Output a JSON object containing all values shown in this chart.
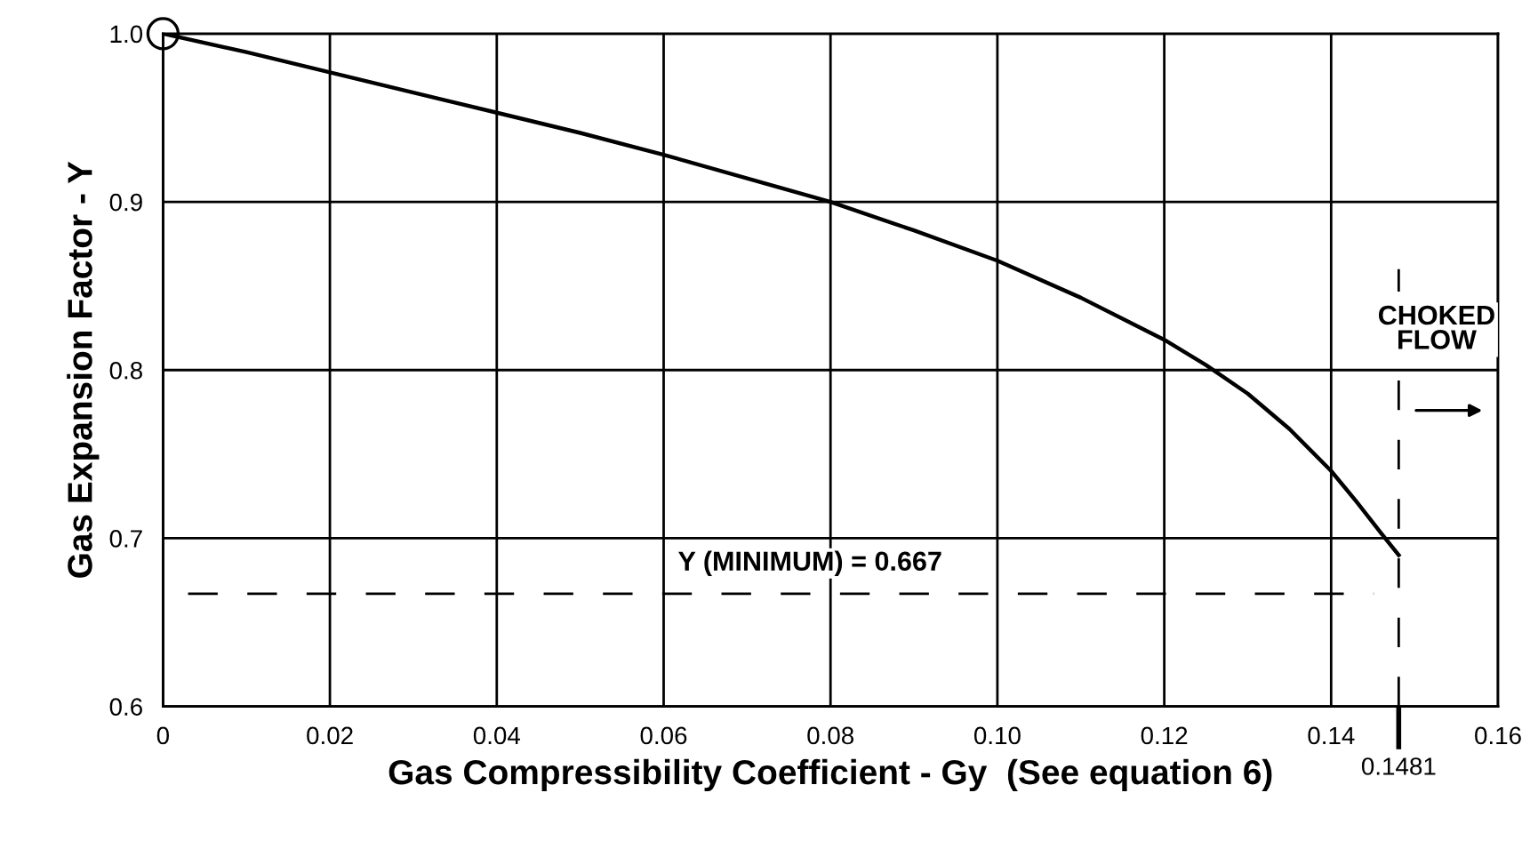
{
  "chart_data": {
    "type": "line",
    "xlabel": "Gas Compressibility Coefficient - Gy  (See equation 6)",
    "ylabel": "Gas Expansion Factor - Y",
    "x": [
      0,
      0.01,
      0.02,
      0.03,
      0.04,
      0.05,
      0.06,
      0.07,
      0.08,
      0.09,
      0.1,
      0.11,
      0.12,
      0.125,
      0.13,
      0.135,
      0.14,
      0.143,
      0.146,
      0.1481
    ],
    "series": [
      {
        "color": "#000000",
        "values": [
          1.0,
          0.989,
          0.977,
          0.965,
          0.953,
          0.941,
          0.928,
          0.914,
          0.9,
          0.883,
          0.865,
          0.843,
          0.818,
          0.803,
          0.786,
          0.765,
          0.74,
          0.722,
          0.703,
          0.69
        ]
      },
      {
        "type": "scatter",
        "marker": "circle",
        "color": "#000000",
        "x": [
          0
        ],
        "values": [
          1.0
        ]
      }
    ],
    "xlim": [
      0,
      0.16
    ],
    "ylim": [
      0.6,
      1.0
    ],
    "xticks": [
      0,
      {
        "value": 0.02,
        "label": "0.02"
      },
      {
        "value": 0.04,
        "label": "0.04"
      },
      {
        "value": 0.06,
        "label": "0.06"
      },
      {
        "value": 0.08,
        "label": "0.08"
      },
      {
        "value": 0.1,
        "label": "0.10"
      },
      {
        "value": 0.12,
        "label": "0.12"
      },
      {
        "value": 0.14,
        "label": "0.14"
      },
      {
        "value": 0.16,
        "label": "0.16"
      }
    ],
    "yticks": [
      {
        "value": 0.6,
        "label": "0.6"
      },
      {
        "value": 0.7,
        "label": "0.7"
      },
      {
        "value": 0.8,
        "label": "0.8"
      },
      {
        "value": 0.9,
        "label": "0.9"
      },
      {
        "value": 1.0,
        "label": "1.0"
      }
    ],
    "grid": true,
    "ref_lines": [
      {
        "axis": "y",
        "value": 0.667,
        "label": "Y (MINIMUM) = 0.667",
        "line_style": "dashed",
        "color": "#000000"
      },
      {
        "axis": "x",
        "value": 0.1481,
        "label": "0.1481",
        "line_style": "dashed",
        "color": "#000000"
      }
    ],
    "annotations": [
      "CHOKED\nFLOW"
    ]
  }
}
